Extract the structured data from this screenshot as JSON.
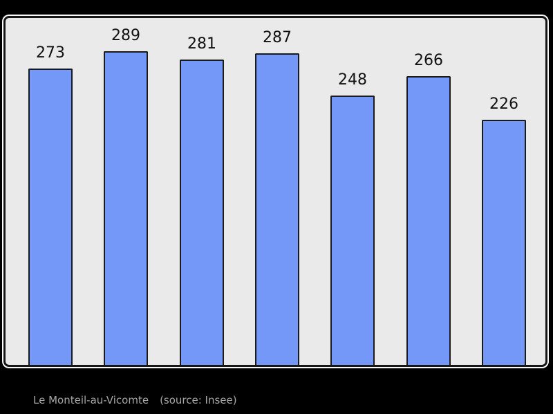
{
  "chart_data": {
    "type": "bar",
    "values": [
      273,
      289,
      281,
      287,
      248,
      266,
      226
    ],
    "title": "",
    "xlabel": "",
    "ylabel": "",
    "ylim": [
      0,
      320
    ],
    "grid": false,
    "legend_position": "none",
    "data_labels_shown": true,
    "colors": {
      "bar_fill": "#7398f8",
      "bar_border": "#1a1a1a",
      "plot_background": "#eaeaea",
      "frame_border": "#161616",
      "frame_outline": "#fafafa",
      "page_background": "#000000",
      "value_label_color": "#111111",
      "caption_color": "#a6a6a6"
    }
  },
  "caption": {
    "commune": "Le Monteil-au-Vicomte",
    "source": "(source: Insee)"
  }
}
